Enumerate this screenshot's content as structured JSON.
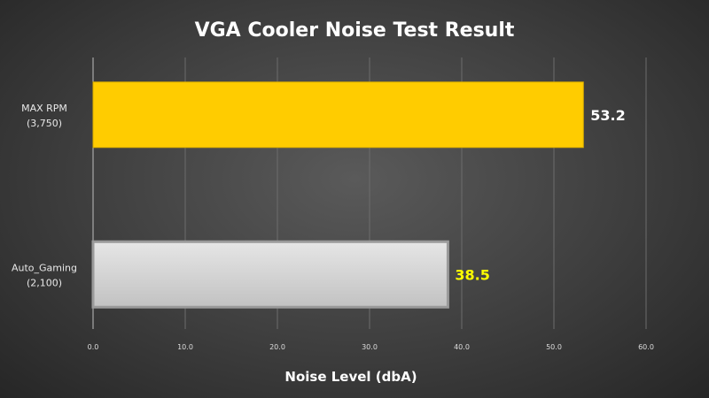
{
  "chart_data": {
    "type": "bar",
    "orientation": "horizontal",
    "title": "VGA Cooler Noise Test Result",
    "xlabel": "Noise Level (dbA)",
    "ylabel": "",
    "xlim": [
      0,
      60
    ],
    "xticks": [
      "0.0",
      "10.0",
      "20.0",
      "30.0",
      "40.0",
      "50.0",
      "60.0"
    ],
    "grid": "vertical",
    "legend": "none",
    "categories": [
      {
        "line1": "MAX RPM",
        "line2": "(3,750)"
      },
      {
        "line1": "Auto_Gaming",
        "line2": "(2,100)"
      }
    ],
    "values": [
      53.2,
      38.5
    ],
    "data_labels": [
      "53.2",
      "38.5"
    ],
    "bar_colors": [
      "#ffcc00",
      "#d4d4d4"
    ],
    "label_colors": [
      "#ffffff",
      "#ffff00"
    ]
  }
}
